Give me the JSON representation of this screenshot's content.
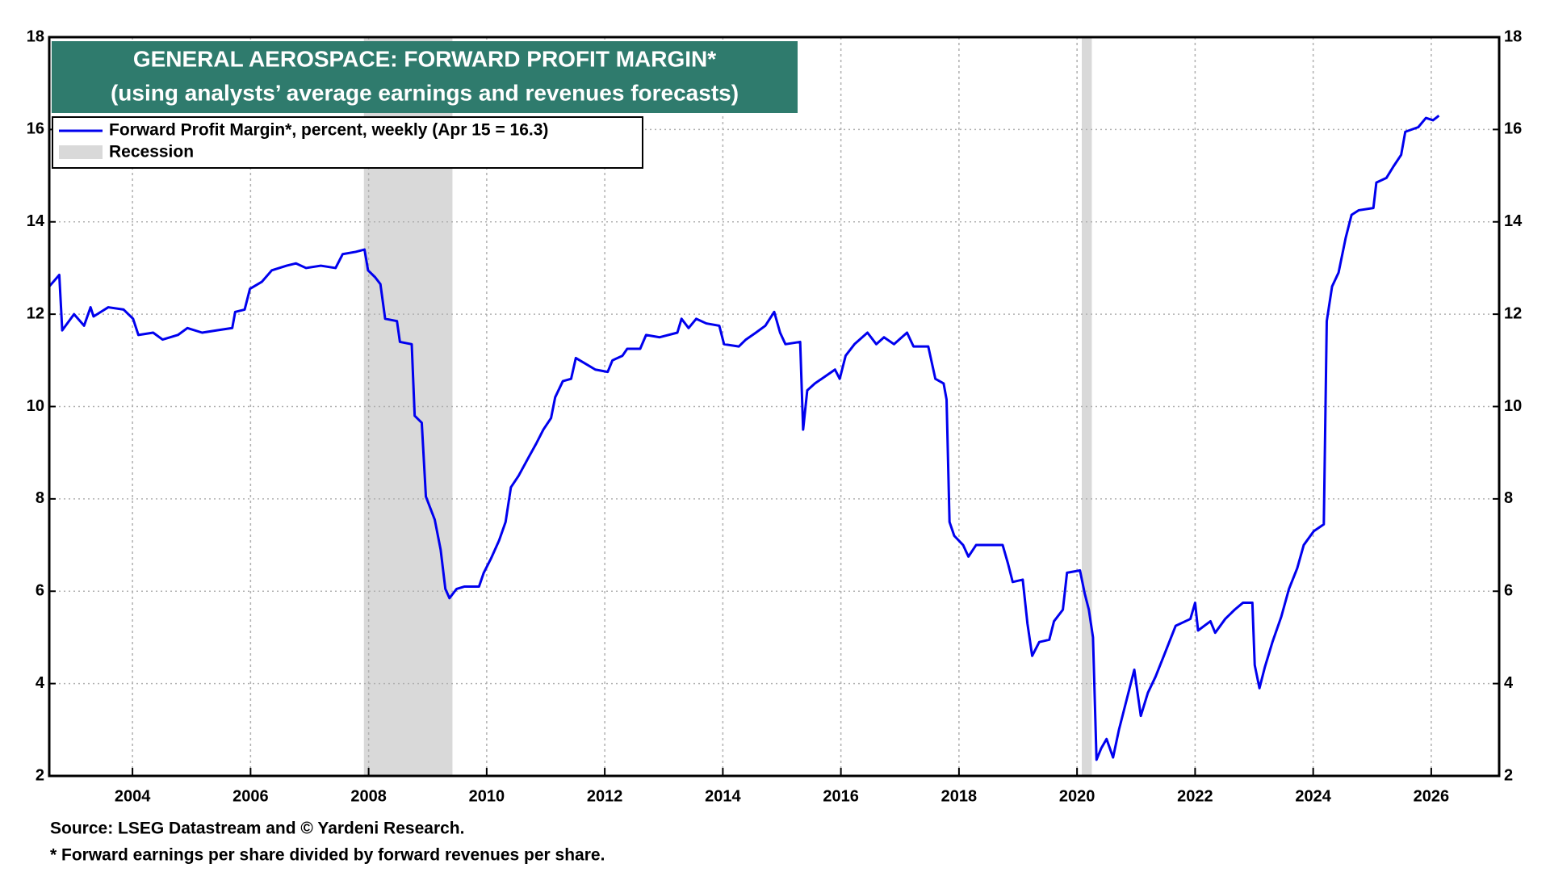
{
  "chart_data": {
    "type": "line",
    "title": "GENERAL AEROSPACE: FORWARD PROFIT MARGIN*",
    "subtitle": "(using analysts’ average earnings and revenues forecasts)",
    "source": "Source: LSEG Datastream and © Yardeni Research.",
    "note": "* Forward earnings per share divided by forward revenues per share.",
    "xlim": [
      2002.59,
      2027.15
    ],
    "xticks": [
      2004,
      2006,
      2008,
      2010,
      2012,
      2014,
      2016,
      2018,
      2020,
      2022,
      2024,
      2026
    ],
    "ylim": [
      2,
      18
    ],
    "yticks": [
      2,
      4,
      6,
      8,
      10,
      12,
      14,
      16,
      18
    ],
    "grid": true,
    "legend_position": "upper left",
    "recession": {
      "name": "Recession",
      "color": "#d9d9d9",
      "spans": [
        [
          2007.92,
          2009.42
        ],
        [
          2020.08,
          2020.25
        ]
      ]
    },
    "x": [
      2002.59,
      2002.76,
      2002.81,
      2003.01,
      2003.18,
      2003.29,
      2003.34,
      2003.59,
      2003.85,
      2004.01,
      2004.1,
      2004.35,
      2004.51,
      2004.77,
      2004.93,
      2005.18,
      2005.43,
      2005.69,
      2005.74,
      2005.9,
      2005.99,
      2006.19,
      2006.36,
      2006.61,
      2006.77,
      2006.94,
      2007.19,
      2007.44,
      2007.56,
      2007.78,
      2007.93,
      2007.99,
      2008.11,
      2008.2,
      2008.28,
      2008.48,
      2008.53,
      2008.73,
      2008.78,
      2008.9,
      2008.97,
      2009.12,
      2009.22,
      2009.3,
      2009.37,
      2009.49,
      2009.62,
      2009.87,
      2009.95,
      2010.07,
      2010.21,
      2010.32,
      2010.41,
      2010.54,
      2010.71,
      2010.84,
      2010.96,
      2011.09,
      2011.16,
      2011.29,
      2011.43,
      2011.51,
      2011.71,
      2011.84,
      2012.05,
      2012.13,
      2012.3,
      2012.38,
      2012.6,
      2012.7,
      2012.93,
      2013.23,
      2013.3,
      2013.42,
      2013.55,
      2013.72,
      2013.94,
      2014.02,
      2014.27,
      2014.39,
      2014.56,
      2014.72,
      2014.87,
      2014.97,
      2015.06,
      2015.31,
      2015.36,
      2015.43,
      2015.56,
      2015.73,
      2015.9,
      2015.98,
      2016.08,
      2016.23,
      2016.45,
      2016.6,
      2016.73,
      2016.9,
      2017.12,
      2017.23,
      2017.48,
      2017.6,
      2017.74,
      2017.79,
      2017.84,
      2017.92,
      2018.07,
      2018.16,
      2018.29,
      2018.74,
      2018.83,
      2018.91,
      2019.08,
      2019.16,
      2019.24,
      2019.36,
      2019.53,
      2019.61,
      2019.76,
      2019.83,
      2020.05,
      2020.13,
      2020.2,
      2020.27,
      2020.33,
      2020.41,
      2020.5,
      2020.61,
      2020.71,
      2020.85,
      2020.97,
      2021.08,
      2021.2,
      2021.33,
      2021.47,
      2021.67,
      2021.92,
      2022.0,
      2022.05,
      2022.26,
      2022.34,
      2022.51,
      2022.67,
      2022.81,
      2022.97,
      2023.01,
      2023.09,
      2023.18,
      2023.31,
      2023.46,
      2023.59,
      2023.73,
      2023.84,
      2024.01,
      2024.18,
      2024.23,
      2024.32,
      2024.43,
      2024.55,
      2024.65,
      2024.77,
      2025.02,
      2025.07,
      2025.24,
      2025.36,
      2025.49,
      2025.56,
      2025.78,
      2025.91,
      2026.03,
      2026.13
    ],
    "series": [
      {
        "name": "Forward Profit Margin*, percent, weekly (Apr 15 = 16.3)",
        "color": "#0000ee",
        "values": [
          12.6,
          12.85,
          11.65,
          12.0,
          11.75,
          12.15,
          11.95,
          12.15,
          12.1,
          11.9,
          11.55,
          11.6,
          11.45,
          11.55,
          11.7,
          11.6,
          11.65,
          11.7,
          12.05,
          12.1,
          12.55,
          12.7,
          12.95,
          13.05,
          13.1,
          13.0,
          13.05,
          13.0,
          13.3,
          13.35,
          13.4,
          12.95,
          12.8,
          12.65,
          11.9,
          11.85,
          11.4,
          11.35,
          9.8,
          9.65,
          8.05,
          7.55,
          6.9,
          6.05,
          5.85,
          6.05,
          6.1,
          6.1,
          6.4,
          6.7,
          7.1,
          7.5,
          8.25,
          8.5,
          8.9,
          9.2,
          9.5,
          9.75,
          10.2,
          10.55,
          10.6,
          11.05,
          10.9,
          10.8,
          10.75,
          11.0,
          11.1,
          11.25,
          11.25,
          11.55,
          11.5,
          11.6,
          11.9,
          11.7,
          11.9,
          11.8,
          11.75,
          11.35,
          11.3,
          11.45,
          11.6,
          11.75,
          12.05,
          11.6,
          11.35,
          11.4,
          9.5,
          10.35,
          10.5,
          10.65,
          10.8,
          10.6,
          11.1,
          11.35,
          11.6,
          11.35,
          11.5,
          11.35,
          11.6,
          11.3,
          11.3,
          10.6,
          10.5,
          10.15,
          7.5,
          7.2,
          7.0,
          6.75,
          7.0,
          7.0,
          6.6,
          6.2,
          6.25,
          5.3,
          4.6,
          4.9,
          4.95,
          5.35,
          5.6,
          6.4,
          6.45,
          5.95,
          5.6,
          5.0,
          2.35,
          2.6,
          2.8,
          2.4,
          3.0,
          3.7,
          4.3,
          3.3,
          3.8,
          4.15,
          4.6,
          5.25,
          5.4,
          5.75,
          5.15,
          5.35,
          5.1,
          5.4,
          5.6,
          5.75,
          5.75,
          4.4,
          3.9,
          4.35,
          4.9,
          5.45,
          6.05,
          6.5,
          7.0,
          7.3,
          7.45,
          11.85,
          12.6,
          12.9,
          13.65,
          14.15,
          14.25,
          14.3,
          14.85,
          14.95,
          15.2,
          15.45,
          15.95,
          16.05,
          16.25,
          16.2,
          16.3
        ]
      }
    ]
  }
}
